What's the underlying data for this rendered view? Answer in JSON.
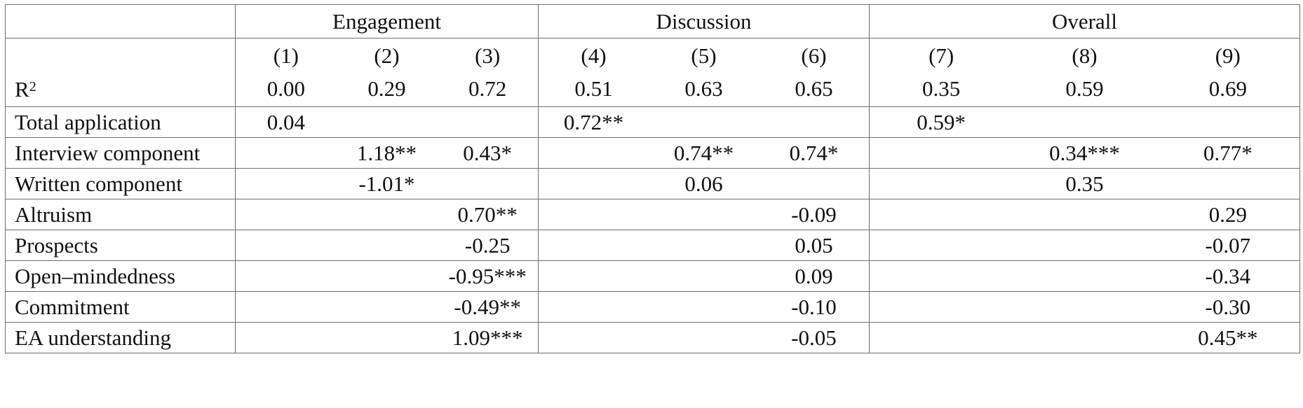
{
  "groups": [
    "Engagement",
    "Discussion",
    "Overall"
  ],
  "columns": [
    "(1)",
    "(2)",
    "(3)",
    "(4)",
    "(5)",
    "(6)",
    "(7)",
    "(8)",
    "(9)"
  ],
  "r2": {
    "label": "R",
    "sup": "2",
    "values": [
      "0.00",
      "0.29",
      "0.72",
      "0.51",
      "0.63",
      "0.65",
      "0.35",
      "0.59",
      "0.69"
    ]
  },
  "rows": [
    {
      "label": "Total application",
      "values": [
        "0.04",
        "",
        "",
        "0.72**",
        "",
        "",
        "0.59*",
        "",
        ""
      ]
    },
    {
      "label": "Interview component",
      "values": [
        "",
        "1.18**",
        "0.43*",
        "",
        "0.74**",
        "0.74*",
        "",
        "0.34***",
        "0.77*"
      ]
    },
    {
      "label": "Written component",
      "values": [
        "",
        "-1.01*",
        "",
        "",
        "0.06",
        "",
        "",
        "0.35",
        ""
      ]
    },
    {
      "label": "Altruism",
      "values": [
        "",
        "",
        "0.70**",
        "",
        "",
        "-0.09",
        "",
        "",
        "0.29"
      ]
    },
    {
      "label": "Prospects",
      "values": [
        "",
        "",
        "-0.25",
        "",
        "",
        "0.05",
        "",
        "",
        "-0.07"
      ]
    },
    {
      "label": "Open–mindedness",
      "values": [
        "",
        "",
        "-0.95***",
        "",
        "",
        "0.09",
        "",
        "",
        "-0.34"
      ]
    },
    {
      "label": "Commitment",
      "values": [
        "",
        "",
        "-0.49**",
        "",
        "",
        "-0.10",
        "",
        "",
        "-0.30"
      ]
    },
    {
      "label": "EA understanding",
      "values": [
        "",
        "",
        "1.09***",
        "",
        "",
        "-0.05",
        "",
        "",
        "0.45**"
      ]
    }
  ]
}
